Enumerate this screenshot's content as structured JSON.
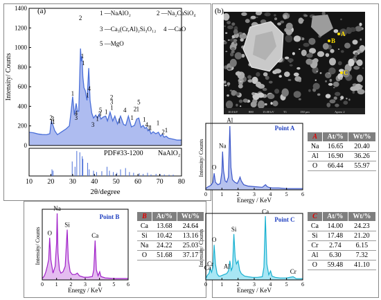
{
  "panel_a": {
    "label": "(a)",
    "legend": {
      "l1": "1 —NaAlO₂",
      "l2": "2 —Na₂CaSiO₄",
      "l3": "3 —Ca₃(Cr,Al)₂Si₃O₁₂",
      "l4": "4 —CaO",
      "l5": "5 —MgO"
    },
    "pdf_label": "PDF#33-1200",
    "pdf_phase": "NaAlO₂"
  },
  "panel_b": {
    "label": "(b)"
  },
  "sem": {
    "points": [
      "A",
      "B",
      "C"
    ],
    "info_bar": [
      "10.0 kV",
      "800",
      "15.00 kV",
      "T1",
      "150 μm",
      "Apreo 2"
    ]
  },
  "table_a": {
    "label": "A",
    "col1": "At/%",
    "col2": "Wt/%",
    "rows": [
      [
        "Na",
        "16.65",
        "20.40"
      ],
      [
        "Al",
        "16.90",
        "36.26"
      ],
      [
        "O",
        "66.44",
        "55.97"
      ]
    ]
  },
  "table_b": {
    "label": "B",
    "col1": "At/%",
    "col2": "Wt/%",
    "rows": [
      [
        "Ca",
        "13.68",
        "24.64"
      ],
      [
        "Si",
        "10.42",
        "13.16"
      ],
      [
        "Na",
        "24.22",
        "25.03"
      ],
      [
        "O",
        "51.68",
        "37.17"
      ]
    ]
  },
  "table_c": {
    "label": "C",
    "col1": "At/%",
    "col2": "Wt/%",
    "rows": [
      [
        "Ca",
        "14.00",
        "24.23"
      ],
      [
        "Si",
        "17.48",
        "21.20"
      ],
      [
        "Cr",
        "2.74",
        "6.15"
      ],
      [
        "Al",
        "6.30",
        "7.32"
      ],
      [
        "O",
        "59.48",
        "41.10"
      ]
    ]
  },
  "chart_data": [
    {
      "type": "line",
      "id": "xrd",
      "xlabel": "2θ/degree",
      "ylabel": "Intensity/ Counts",
      "xlim": [
        10,
        80
      ],
      "ylim": [
        0,
        1400
      ],
      "xticks": [
        10,
        20,
        30,
        40,
        50,
        60,
        70,
        80
      ],
      "yticks": [
        0,
        200,
        400,
        600,
        800,
        1000,
        1200,
        1400
      ],
      "color": "#4a6fd8",
      "fill": "#aebcf0",
      "x": [
        10,
        12,
        14,
        16,
        18,
        19.5,
        20.2,
        20.9,
        21.8,
        23,
        25,
        27,
        28.5,
        29.3,
        30,
        30.8,
        31.6,
        32.2,
        32.8,
        33.6,
        34,
        34.3,
        34.7,
        35.2,
        35.8,
        36.6,
        37.4,
        38,
        38.8,
        39.6,
        40.6,
        41.4,
        42.2,
        43,
        44,
        45.2,
        46,
        47.2,
        48.4,
        49.4,
        50.6,
        52,
        53.4,
        54.4,
        55.6,
        57,
        58.4,
        59.4,
        60.4,
        61.4,
        62.4,
        63.2,
        64,
        64.6,
        65.2,
        66,
        67,
        68.2,
        69.4,
        70.4,
        71.2,
        72,
        73,
        74,
        76,
        78,
        80
      ],
      "y": [
        135,
        130,
        118,
        112,
        110,
        120,
        250,
        210,
        150,
        110,
        140,
        170,
        200,
        350,
        500,
        310,
        430,
        350,
        350,
        990,
        860,
        910,
        700,
        590,
        560,
        460,
        790,
        460,
        330,
        280,
        310,
        280,
        320,
        270,
        290,
        300,
        250,
        340,
        250,
        300,
        220,
        300,
        215,
        205,
        300,
        190,
        205,
        270,
        280,
        185,
        205,
        175,
        185,
        150,
        165,
        120,
        140,
        120,
        135,
        95,
        115,
        85,
        95,
        75,
        65,
        55,
        55
      ],
      "peak_labels": [
        {
          "x": 20.1,
          "y": 260,
          "text": "2"
        },
        {
          "x": 20.8,
          "y": 250,
          "text": "3"
        },
        {
          "x": 20.3,
          "y": 220,
          "text": "1"
        },
        {
          "x": 21.3,
          "y": 220,
          "text": "1"
        },
        {
          "x": 30.0,
          "y": 510,
          "text": "1"
        },
        {
          "x": 31.6,
          "y": 310,
          "text": "4"
        },
        {
          "x": 31.6,
          "y": 260,
          "text": "3"
        },
        {
          "x": 33.6,
          "y": 1280,
          "text": "2"
        },
        {
          "x": 34.5,
          "y": 890,
          "text": "1"
        },
        {
          "x": 34.9,
          "y": 820,
          "text": "1"
        },
        {
          "x": 36.9,
          "y": 490,
          "text": "1"
        },
        {
          "x": 37.6,
          "y": 560,
          "text": "4"
        },
        {
          "x": 39.3,
          "y": 190,
          "text": "3"
        },
        {
          "x": 41.4,
          "y": 250,
          "text": "1"
        },
        {
          "x": 42.8,
          "y": 340,
          "text": "5"
        },
        {
          "x": 42.5,
          "y": 300,
          "text": "3"
        },
        {
          "x": 45.4,
          "y": 320,
          "text": "1"
        },
        {
          "x": 47.9,
          "y": 470,
          "text": "2"
        },
        {
          "x": 47.9,
          "y": 420,
          "text": "3"
        },
        {
          "x": 48.0,
          "y": 365,
          "text": "1"
        },
        {
          "x": 51.4,
          "y": 230,
          "text": "1"
        },
        {
          "x": 54.0,
          "y": 340,
          "text": "4"
        },
        {
          "x": 57.3,
          "y": 260,
          "text": "1"
        },
        {
          "x": 60.4,
          "y": 420,
          "text": "5"
        },
        {
          "x": 58.7,
          "y": 350,
          "text": "2"
        },
        {
          "x": 59.9,
          "y": 350,
          "text": "1"
        },
        {
          "x": 62.9,
          "y": 245,
          "text": "1"
        },
        {
          "x": 64.0,
          "y": 190,
          "text": "4"
        },
        {
          "x": 65.1,
          "y": 160,
          "text": "1"
        },
        {
          "x": 65.8,
          "y": 160,
          "text": "1"
        },
        {
          "x": 69.2,
          "y": 210,
          "text": "1"
        },
        {
          "x": 71.6,
          "y": 115,
          "text": "2"
        },
        {
          "x": 73.0,
          "y": 135,
          "text": "1"
        }
      ],
      "reference_sticks": {
        "x": [
          20.5,
          21.0,
          29.8,
          31.1,
          31.9,
          33.3,
          34.4,
          34.7,
          36.9,
          37.6,
          39.6,
          41.0,
          43.4,
          45.8,
          46.9,
          48.7,
          50.3,
          52.0,
          54.3,
          56.1,
          58.0,
          60.6,
          62.4,
          64.4,
          66.0,
          68.3,
          70.2,
          72.1,
          74.3,
          76.2
        ],
        "y": [
          0.25,
          0.2,
          0.55,
          0.35,
          0.95,
          0.9,
          0.75,
          0.65,
          0.5,
          0.25,
          0.2,
          0.15,
          0.18,
          0.35,
          0.2,
          0.15,
          0.12,
          0.25,
          0.3,
          0.15,
          0.12,
          0.1,
          0.08,
          0.12,
          0.06,
          0.08,
          0.07,
          0.06,
          0.05,
          0.05
        ]
      }
    },
    {
      "type": "line",
      "id": "eds_a",
      "title": "Point A",
      "xlabel": "Energy / KeV",
      "ylabel": "Intensity/ Counts",
      "xlim": [
        0,
        6
      ],
      "xticks": [
        0,
        1,
        2,
        3,
        4,
        5,
        6
      ],
      "color": "#3a55c8",
      "fill": "#b6c2ee",
      "x": [
        0,
        0.15,
        0.25,
        0.35,
        0.45,
        0.52,
        0.6,
        0.75,
        0.9,
        1.0,
        1.04,
        1.1,
        1.2,
        1.3,
        1.4,
        1.49,
        1.56,
        1.65,
        1.8,
        1.95,
        2.05,
        2.12,
        2.2,
        2.35,
        2.6,
        3.0,
        3.5,
        3.7,
        3.8,
        3.9,
        4.1,
        4.5,
        5.0,
        5.5,
        6.0
      ],
      "y": [
        0.02,
        0.05,
        0.06,
        0.08,
        0.12,
        0.26,
        0.12,
        0.08,
        0.1,
        0.28,
        0.6,
        0.3,
        0.14,
        0.12,
        0.2,
        1.0,
        0.35,
        0.16,
        0.12,
        0.1,
        0.15,
        0.2,
        0.14,
        0.08,
        0.06,
        0.05,
        0.04,
        0.08,
        0.05,
        0.04,
        0.03,
        0.03,
        0.02,
        0.02,
        0.02
      ],
      "peak_labels": [
        {
          "x": 0.52,
          "y": 0.32,
          "text": "O"
        },
        {
          "x": 1.04,
          "y": 0.66,
          "text": "Na"
        },
        {
          "x": 1.49,
          "y": 1.06,
          "text": "Al"
        }
      ]
    },
    {
      "type": "line",
      "id": "eds_b",
      "title": "Point B",
      "xlabel": "Energy / KeV",
      "ylabel": "Intensity/ Counts",
      "xlim": [
        0,
        6
      ],
      "xticks": [
        0,
        1,
        2,
        3,
        4,
        5,
        6
      ],
      "color": "#a020c8",
      "fill": "#e4bcf0",
      "x": [
        0,
        0.15,
        0.25,
        0.35,
        0.45,
        0.52,
        0.6,
        0.75,
        0.9,
        1.0,
        1.04,
        1.1,
        1.2,
        1.3,
        1.45,
        1.6,
        1.74,
        1.82,
        1.95,
        2.1,
        2.3,
        2.45,
        2.6,
        2.9,
        3.2,
        3.5,
        3.6,
        3.69,
        3.78,
        3.9,
        4.01,
        4.1,
        4.4,
        5.0,
        5.5,
        6.0
      ],
      "y": [
        0.02,
        0.06,
        0.12,
        0.2,
        0.3,
        0.62,
        0.3,
        0.1,
        0.2,
        0.55,
        0.98,
        0.4,
        0.15,
        0.1,
        0.12,
        0.2,
        0.74,
        0.3,
        0.12,
        0.08,
        0.08,
        0.1,
        0.06,
        0.04,
        0.04,
        0.05,
        0.15,
        0.58,
        0.15,
        0.06,
        0.12,
        0.05,
        0.03,
        0.02,
        0.02,
        0.02
      ],
      "peak_labels": [
        {
          "x": 0.52,
          "y": 0.66,
          "text": "O"
        },
        {
          "x": 1.04,
          "y": 1.02,
          "text": "Na"
        },
        {
          "x": 1.74,
          "y": 0.78,
          "text": "Si"
        },
        {
          "x": 3.69,
          "y": 0.62,
          "text": "Ca"
        }
      ]
    },
    {
      "type": "line",
      "id": "eds_c",
      "title": "Point C",
      "xlabel": "Energy / KeV",
      "ylabel": "Intensity/ Counts",
      "xlim": [
        0,
        6
      ],
      "xticks": [
        0,
        1,
        2,
        3,
        4,
        5,
        6
      ],
      "color": "#18b0d0",
      "fill": "#a8e6f4",
      "x": [
        0,
        0.12,
        0.2,
        0.28,
        0.36,
        0.45,
        0.52,
        0.6,
        0.7,
        0.8,
        0.9,
        1.0,
        1.1,
        1.2,
        1.3,
        1.4,
        1.49,
        1.58,
        1.66,
        1.74,
        1.82,
        1.9,
        2.0,
        2.1,
        2.2,
        2.4,
        2.6,
        2.9,
        3.2,
        3.5,
        3.6,
        3.69,
        3.78,
        3.9,
        4.01,
        4.1,
        4.3,
        4.6,
        5.0,
        5.41,
        5.6,
        6.0
      ],
      "y": [
        0.02,
        0.08,
        0.1,
        0.18,
        0.12,
        0.2,
        0.55,
        0.25,
        0.1,
        0.06,
        0.06,
        0.07,
        0.08,
        0.09,
        0.1,
        0.14,
        0.3,
        0.15,
        0.2,
        0.72,
        0.35,
        0.25,
        0.3,
        0.15,
        0.1,
        0.06,
        0.05,
        0.04,
        0.04,
        0.05,
        0.2,
        1.0,
        0.25,
        0.08,
        0.14,
        0.06,
        0.04,
        0.03,
        0.03,
        0.05,
        0.02,
        0.02
      ],
      "peak_labels": [
        {
          "x": 0.28,
          "y": 0.22,
          "text": "Cr"
        },
        {
          "x": 0.12,
          "y": 0.16,
          "text": "Ca"
        },
        {
          "x": 0.52,
          "y": 0.6,
          "text": "O"
        },
        {
          "x": 1.3,
          "y": 0.18,
          "text": "Al"
        },
        {
          "x": 1.74,
          "y": 0.76,
          "text": "Si"
        },
        {
          "x": 3.69,
          "y": 1.04,
          "text": "Ca"
        },
        {
          "x": 5.41,
          "y": 0.1,
          "text": "Cr"
        }
      ]
    }
  ]
}
